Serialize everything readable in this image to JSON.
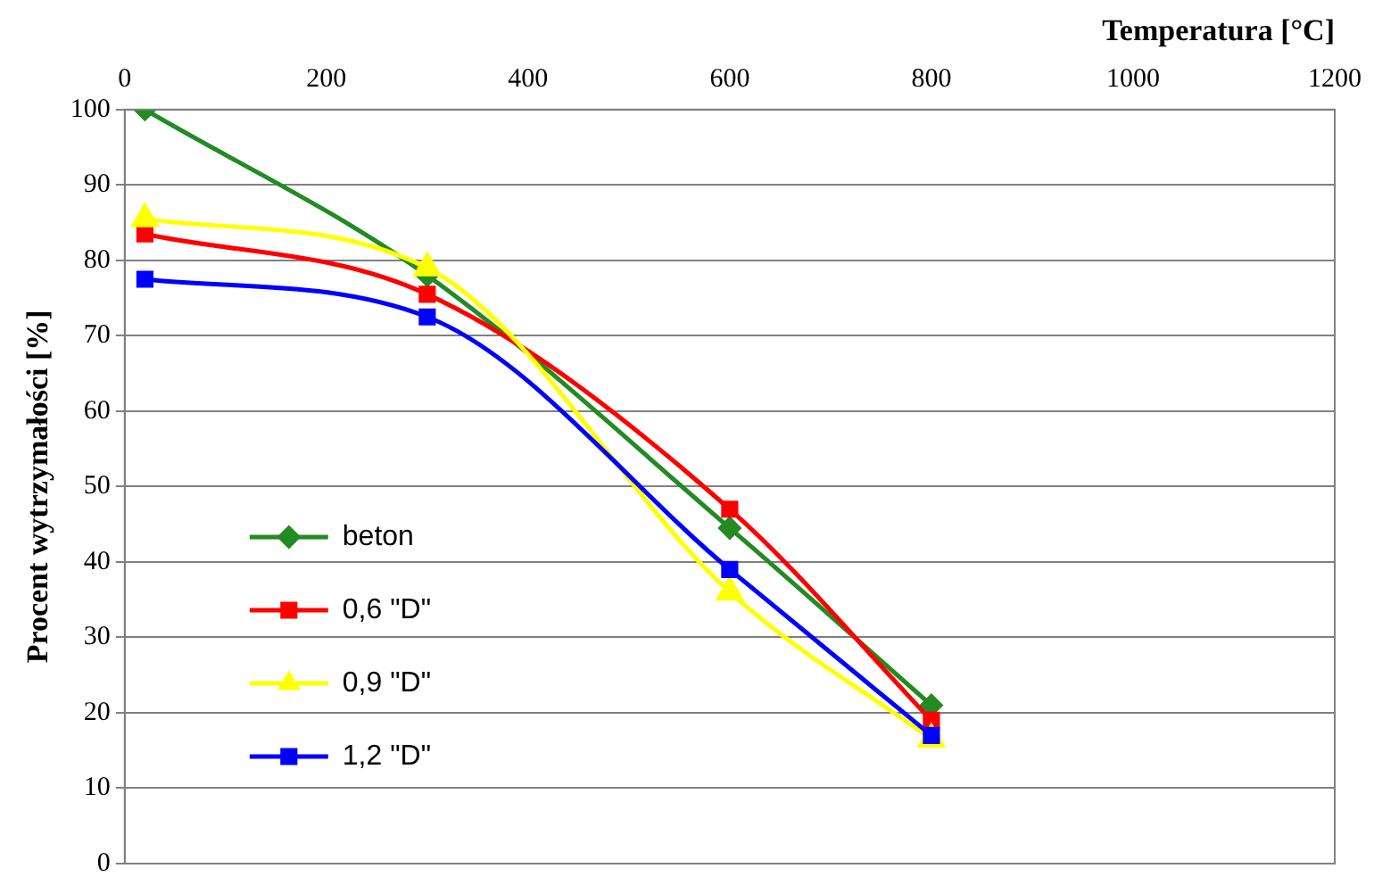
{
  "chart_data": {
    "type": "line",
    "xlabel": "Temperatura [°C]",
    "ylabel": "Procent wytrzymałości [%]",
    "x": [
      20,
      300,
      600,
      800
    ],
    "series": [
      {
        "name": "beton",
        "color": "#228b22",
        "marker": "diamond",
        "values": [
          100,
          78,
          44.5,
          21
        ]
      },
      {
        "name": "0,6 \"D\"",
        "color": "#ff0000",
        "marker": "square",
        "values": [
          83.5,
          75.5,
          47,
          19
        ]
      },
      {
        "name": "0,9 \"D\"",
        "color": "#ffff00",
        "marker": "triangle",
        "values": [
          85.5,
          79,
          36,
          16.5
        ]
      },
      {
        "name": "1,2 \"D\"",
        "color": "#0000ff",
        "marker": "square",
        "values": [
          77.5,
          72.5,
          39,
          17
        ]
      }
    ],
    "xlim": [
      0,
      1200
    ],
    "xticks": [
      0,
      200,
      400,
      600,
      800,
      1000,
      1200
    ],
    "ylim": [
      0,
      100
    ],
    "yticks": [
      0,
      10,
      20,
      30,
      40,
      50,
      60,
      70,
      80,
      90,
      100
    ],
    "grid": "y",
    "legend": "bottom left"
  }
}
